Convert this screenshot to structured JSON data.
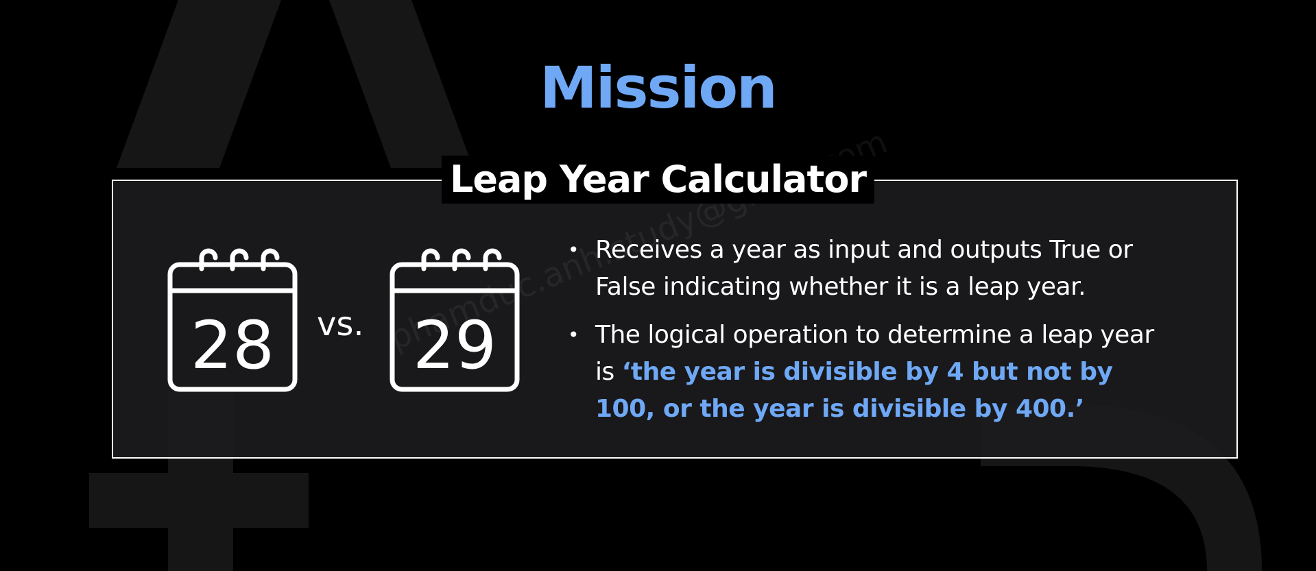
{
  "title": "Mission",
  "panel": {
    "title": "Leap Year Calculator",
    "watermark": "phamduc.anh.study@gmail.com",
    "calendar_left": {
      "day": "28"
    },
    "vs_label": "vs.",
    "calendar_right": {
      "day": "29"
    },
    "bullets": [
      {
        "text": "Receives a year as input and outputs True or False indicating whether it is a leap year."
      },
      {
        "prefix": "The logical operation to determine a leap year is ",
        "highlight": "‘the year is divisible by 4 but not by 100, or the year is divisible by 400.’"
      }
    ]
  },
  "colors": {
    "accent": "#6fa8f5",
    "background": "#000000",
    "panel_background": "#1c1c1e"
  }
}
